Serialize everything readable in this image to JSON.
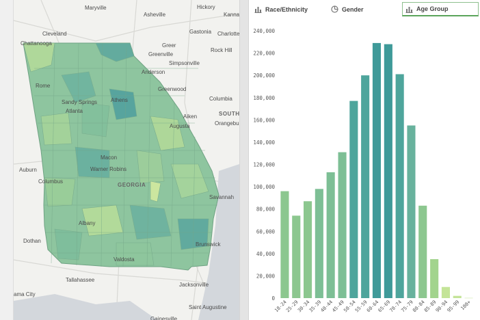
{
  "tabs": [
    {
      "label": "Race/Ethnicity",
      "icon": "bar-chart-icon"
    },
    {
      "label": "Gender",
      "icon": "pie-chart-icon"
    },
    {
      "label": "Age Group",
      "icon": "bar-chart-icon",
      "active": true
    }
  ],
  "map": {
    "labels": [
      {
        "text": "Maryville",
        "cls": "city"
      },
      {
        "text": "Asheville",
        "cls": "city"
      },
      {
        "text": "Hickory",
        "cls": "city"
      },
      {
        "text": "Kanna",
        "cls": "city"
      },
      {
        "text": "Cleveland",
        "cls": "city"
      },
      {
        "text": "Gastonia",
        "cls": "city"
      },
      {
        "text": "Charlotte",
        "cls": "city"
      },
      {
        "text": "Chattanooga",
        "cls": "city"
      },
      {
        "text": "Greer",
        "cls": "city"
      },
      {
        "text": "Greenville",
        "cls": "city"
      },
      {
        "text": "Rock Hill",
        "cls": "city"
      },
      {
        "text": "Simpsonville",
        "cls": "city"
      },
      {
        "text": "Anderson",
        "cls": "city"
      },
      {
        "text": "Rome",
        "cls": "city"
      },
      {
        "text": "Greenwood",
        "cls": "city"
      },
      {
        "text": "Columbia",
        "cls": "city"
      },
      {
        "text": "Sandy Springs",
        "cls": "city"
      },
      {
        "text": "Athens",
        "cls": "city"
      },
      {
        "text": "Atlanta",
        "cls": "city"
      },
      {
        "text": "SOUTH",
        "cls": "state"
      },
      {
        "text": "Aiken",
        "cls": "city"
      },
      {
        "text": "Orangebur",
        "cls": "city"
      },
      {
        "text": "Augusta",
        "cls": "city"
      },
      {
        "text": "Auburn",
        "cls": "city"
      },
      {
        "text": "Macon",
        "cls": "city"
      },
      {
        "text": "Warner Robins",
        "cls": "city"
      },
      {
        "text": "Columbus",
        "cls": "city"
      },
      {
        "text": "GEORGIA",
        "cls": "state"
      },
      {
        "text": "Savannah",
        "cls": "city"
      },
      {
        "text": "Albany",
        "cls": "city"
      },
      {
        "text": "Dothan",
        "cls": "city"
      },
      {
        "text": "Brunswick",
        "cls": "city"
      },
      {
        "text": "Valdosta",
        "cls": "city"
      },
      {
        "text": "Tallahassee",
        "cls": "city"
      },
      {
        "text": "Jacksonville",
        "cls": "city"
      },
      {
        "text": "ama City",
        "cls": "city"
      },
      {
        "text": "Saint Augustine",
        "cls": "city"
      },
      {
        "text": "Gainesville",
        "cls": "city"
      }
    ]
  },
  "colors": {
    "bar_low": "#b6e08f",
    "bar_mid": "#7cbf8e",
    "bar_high": "#3f9c9a",
    "active_tab": "#5aa45a"
  },
  "chart_data": {
    "type": "bar",
    "categories": [
      "18-24",
      "25-29",
      "30-34",
      "35-39",
      "40-44",
      "45-49",
      "50-54",
      "55-59",
      "60-64",
      "65-69",
      "70-74",
      "75-79",
      "80-84",
      "85-89",
      "90-94",
      "95-99",
      "100+"
    ],
    "values": [
      96000,
      74000,
      87000,
      98000,
      113000,
      131000,
      177000,
      200000,
      229000,
      228000,
      201000,
      155000,
      83000,
      35000,
      10000,
      2000,
      200
    ],
    "yticks": [
      "0",
      "20,000",
      "40,000",
      "60,000",
      "80,000",
      "100,000",
      "120,000",
      "140,000",
      "160,000",
      "180,000",
      "200,000",
      "220,000",
      "240,000"
    ],
    "ylim": [
      0,
      240000
    ],
    "title": "",
    "xlabel": "",
    "ylabel": "",
    "grid": false
  }
}
